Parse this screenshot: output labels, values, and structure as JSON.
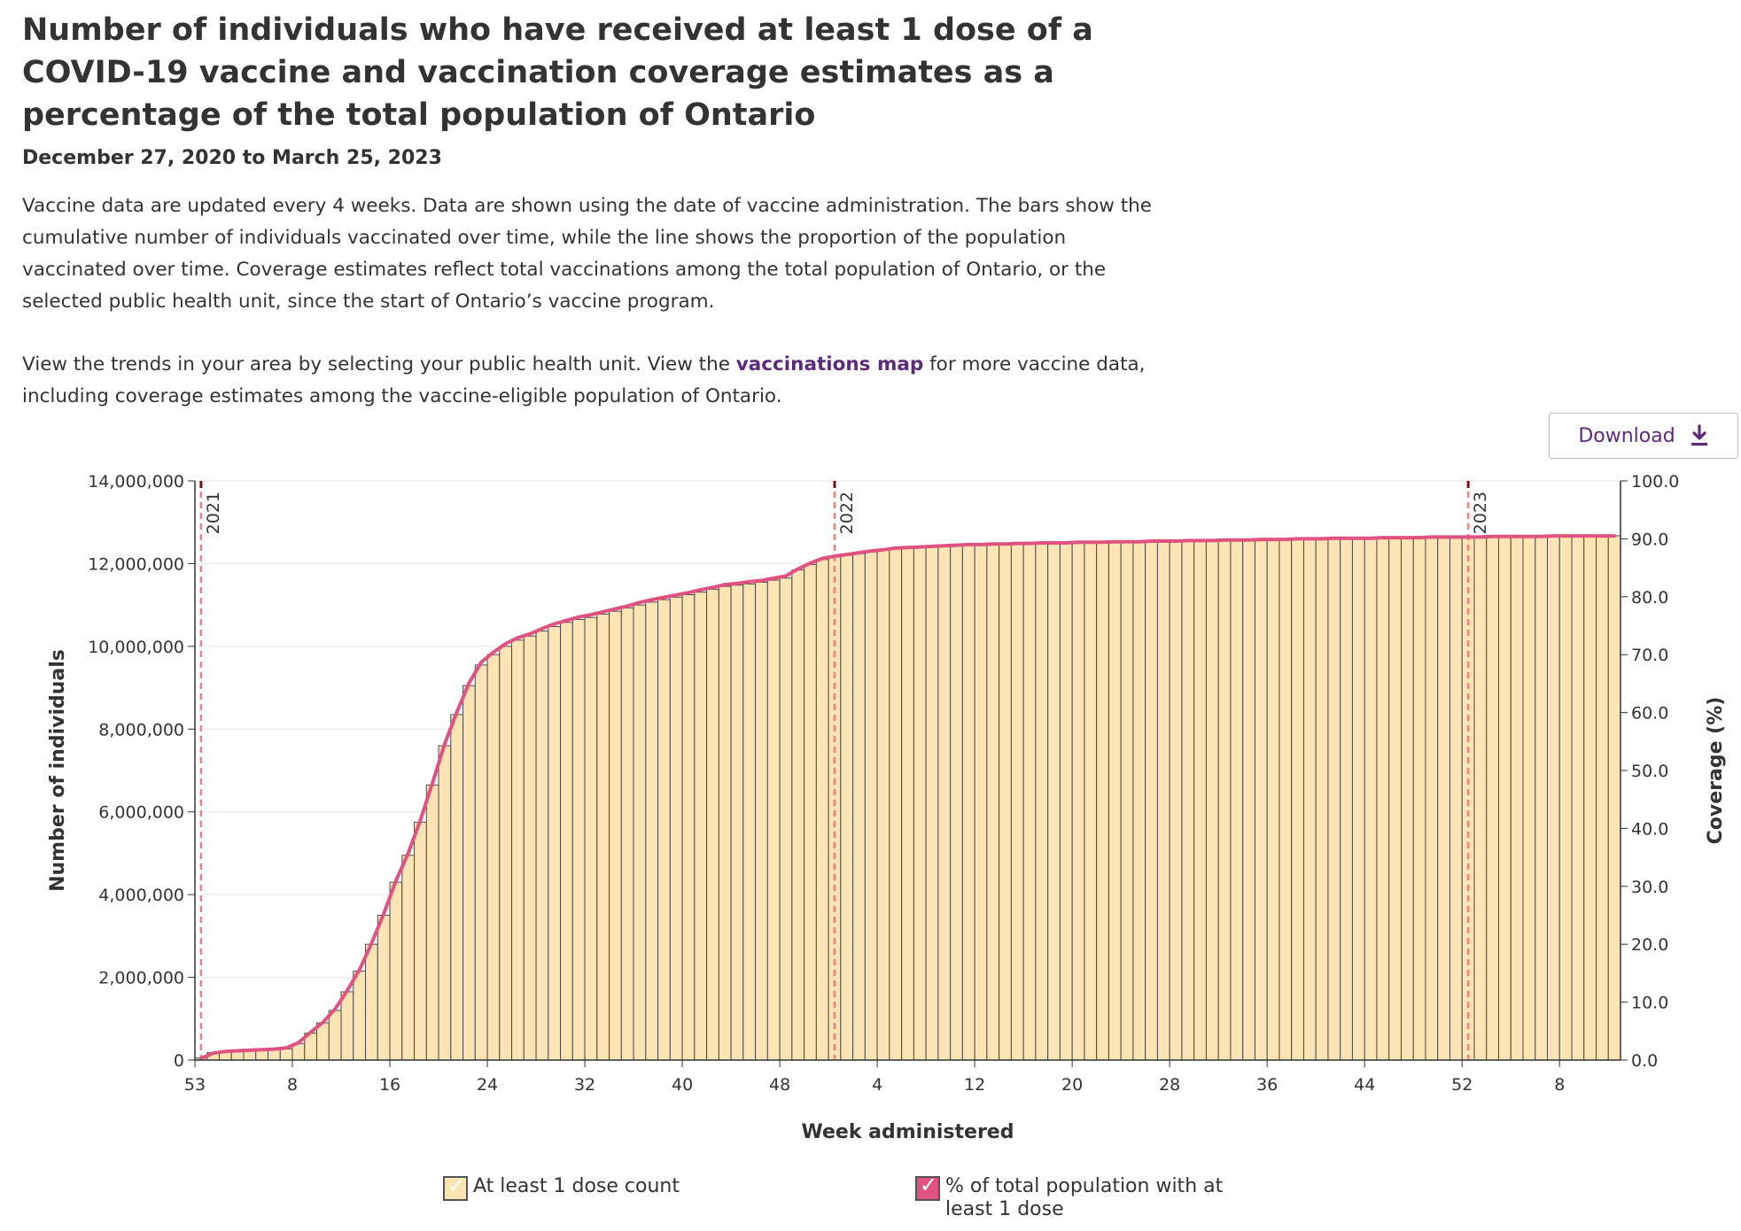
{
  "header": {
    "title": "Number of individuals who have received at least 1 dose of a COVID-19 vaccine and vaccination coverage estimates as a percentage of the total population of Ontario",
    "date_range": "December 27, 2020 to March 25, 2023",
    "description_1": "Vaccine data are updated every 4 weeks. Data are shown using the date of vaccine administration. The bars show the cumulative number of individuals vaccinated over time, while the line shows the proportion of the population vaccinated over time. Coverage estimates reflect total vaccinations among the total population of Ontario, or the selected public health unit, since the start of Ontario’s vaccine program.",
    "description_2_before": "View the trends in your area by selecting your public health unit. View the ",
    "description_2_link": "vaccinations map",
    "description_2_after": " for more vaccine data, including coverage estimates among the vaccine-eligible population of Ontario."
  },
  "toolbar": {
    "download_label": "Download",
    "download_icon": "download-icon"
  },
  "legend": {
    "bars_label": "At least 1 dose count",
    "line_label": "% of total population with at least 1 dose"
  },
  "colors": {
    "bar_fill": "#fde4b4",
    "bar_stroke": "#4a4a4a",
    "line": "#e0527f",
    "year_marker": "#f08080",
    "link": "#5c2a7a",
    "grid": "#e6e6e6"
  },
  "chart_data": {
    "type": "bar",
    "xlabel": "Week administered",
    "ylabel": "Number of individuals",
    "y2label": "Coverage (%)",
    "ylim": [
      0,
      14000000
    ],
    "y2lim": [
      0,
      100
    ],
    "yticks": [
      0,
      2000000,
      4000000,
      6000000,
      8000000,
      10000000,
      12000000,
      14000000
    ],
    "ytick_labels": [
      "0",
      "2,000,000",
      "4,000,000",
      "6,000,000",
      "8,000,000",
      "10,000,000",
      "12,000,000",
      "14,000,000"
    ],
    "y2ticks": [
      0,
      10,
      20,
      30,
      40,
      50,
      60,
      70,
      80,
      90,
      100
    ],
    "y2tick_labels": [
      "0.0",
      "10.0",
      "20.0",
      "30.0",
      "40.0",
      "50.0",
      "60.0",
      "70.0",
      "80.0",
      "90.0",
      "100.0"
    ],
    "xticks": [
      {
        "index": 0,
        "label": "53"
      },
      {
        "index": 8,
        "label": "8"
      },
      {
        "index": 16,
        "label": "16"
      },
      {
        "index": 24,
        "label": "24"
      },
      {
        "index": 32,
        "label": "32"
      },
      {
        "index": 40,
        "label": "40"
      },
      {
        "index": 48,
        "label": "48"
      },
      {
        "index": 56,
        "label": "4"
      },
      {
        "index": 64,
        "label": "12"
      },
      {
        "index": 72,
        "label": "20"
      },
      {
        "index": 80,
        "label": "28"
      },
      {
        "index": 88,
        "label": "36"
      },
      {
        "index": 96,
        "label": "44"
      },
      {
        "index": 104,
        "label": "52"
      },
      {
        "index": 112,
        "label": "8"
      }
    ],
    "year_markers": [
      {
        "position": 0.5,
        "label": "2021"
      },
      {
        "position": 52.5,
        "label": "2022"
      },
      {
        "position": 104.5,
        "label": "2023"
      }
    ],
    "series": [
      {
        "name": "At least 1 dose count",
        "kind": "bar",
        "axis": "left",
        "values": [
          50000,
          180000,
          200000,
          210000,
          220000,
          230000,
          250000,
          270000,
          400000,
          650000,
          900000,
          1200000,
          1650000,
          2150000,
          2800000,
          3500000,
          4300000,
          4950000,
          5750000,
          6650000,
          7600000,
          8350000,
          9050000,
          9550000,
          9800000,
          10000000,
          10150000,
          10250000,
          10370000,
          10480000,
          10580000,
          10650000,
          10700000,
          10780000,
          10850000,
          10930000,
          11000000,
          11070000,
          11130000,
          11190000,
          11250000,
          11310000,
          11380000,
          11450000,
          11480000,
          11510000,
          11550000,
          11600000,
          11650000,
          11850000,
          11980000,
          12100000,
          12160000,
          12200000,
          12240000,
          12280000,
          12320000,
          12360000,
          12380000,
          12390000,
          12400000,
          12420000,
          12430000,
          12440000,
          12450000,
          12455000,
          12460000,
          12470000,
          12475000,
          12480000,
          12485000,
          12490000,
          12495000,
          12500000,
          12505000,
          12510000,
          12515000,
          12520000,
          12525000,
          12530000,
          12535000,
          12540000,
          12545000,
          12550000,
          12558000,
          12565000,
          12570000,
          12578000,
          12585000,
          12590000,
          12595000,
          12600000,
          12605000,
          12610000,
          12615000,
          12620000,
          12623000,
          12626000,
          12630000,
          12633000,
          12636000,
          12640000,
          12643000,
          12646000,
          12650000,
          12652000,
          12654000,
          12656000,
          12658000,
          12660000,
          12662000,
          12664000,
          12666000,
          12668000,
          12670000,
          12672000,
          12674000
        ]
      },
      {
        "name": "% of total population with at least 1 dose",
        "kind": "line",
        "axis": "right",
        "values": [
          0.3,
          1.2,
          1.5,
          1.6,
          1.7,
          1.8,
          1.9,
          2.1,
          3.0,
          4.8,
          6.5,
          8.8,
          12.0,
          15.6,
          20.2,
          25.3,
          31.0,
          35.7,
          41.4,
          47.9,
          54.6,
          60.1,
          65.1,
          68.7,
          70.4,
          71.9,
          72.9,
          73.6,
          74.5,
          75.3,
          75.9,
          76.5,
          76.9,
          77.4,
          77.9,
          78.4,
          79.0,
          79.5,
          79.9,
          80.3,
          80.7,
          81.2,
          81.6,
          82.1,
          82.3,
          82.6,
          82.8,
          83.2,
          83.6,
          84.8,
          85.8,
          86.6,
          87.0,
          87.3,
          87.6,
          87.9,
          88.1,
          88.4,
          88.5,
          88.6,
          88.7,
          88.8,
          88.9,
          89.0,
          89.0,
          89.1,
          89.1,
          89.2,
          89.2,
          89.3,
          89.3,
          89.3,
          89.4,
          89.4,
          89.4,
          89.5,
          89.5,
          89.5,
          89.6,
          89.6,
          89.6,
          89.7,
          89.7,
          89.7,
          89.8,
          89.8,
          89.8,
          89.9,
          89.9,
          89.9,
          90.0,
          90.0,
          90.0,
          90.1,
          90.1,
          90.1,
          90.1,
          90.2,
          90.2,
          90.2,
          90.2,
          90.3,
          90.3,
          90.3,
          90.3,
          90.3,
          90.4,
          90.4,
          90.4,
          90.4,
          90.4,
          90.5,
          90.5,
          90.5,
          90.5,
          90.5,
          90.5
        ]
      }
    ]
  }
}
